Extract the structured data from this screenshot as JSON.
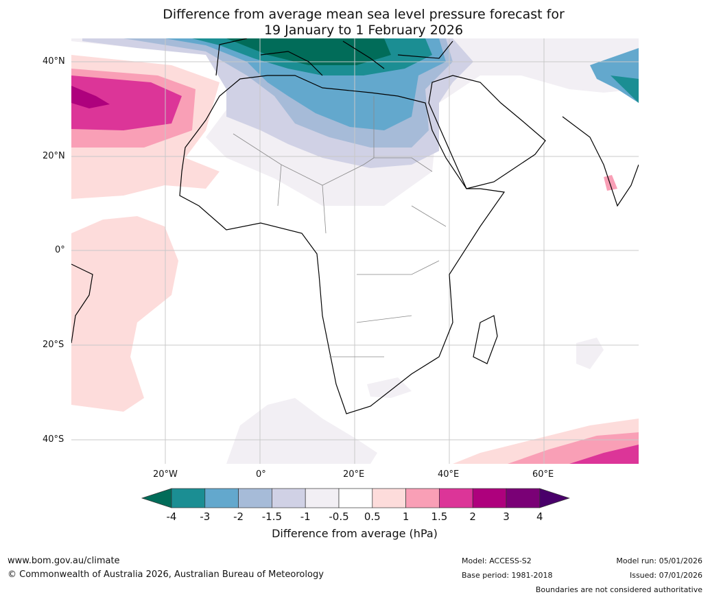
{
  "title_line1": "Difference from average mean sea level pressure forecast for",
  "title_line2": "19 January to 1 February 2026",
  "lat_labels": [
    "40°N",
    "20°N",
    "0°",
    "20°S",
    "40°S"
  ],
  "lon_labels": [
    "20°W",
    "0°",
    "20°E",
    "40°E",
    "60°E"
  ],
  "colorbar": {
    "ticks": [
      "-4",
      "-3",
      "-2",
      "-1.5",
      "-1",
      "-0.5",
      "0.5",
      "1",
      "1.5",
      "2",
      "3",
      "4"
    ],
    "colors": [
      "#1b8e93",
      "#63a8cd",
      "#a6bbd8",
      "#d0d1e5",
      "#f2eff4",
      "#ffffff",
      "#fddcdb",
      "#f99fb6",
      "#dc3598",
      "#ae017d",
      "#7a0176"
    ],
    "under_color": "#016c59",
    "over_color": "#49006a",
    "label": "Difference from average (hPa)"
  },
  "footer": {
    "website": "www.bom.gov.au/climate",
    "copyright": "© Commonwealth of Australia 2026, Australian Bureau of Meteorology",
    "model": "Model: ACCESS-S2",
    "base_period": "Base period: 1981-2018",
    "model_run": "Model run: 05/01/2026",
    "issued": "Issued: 07/01/2026",
    "disclaimer": "Boundaries are not considered authoritative"
  }
}
